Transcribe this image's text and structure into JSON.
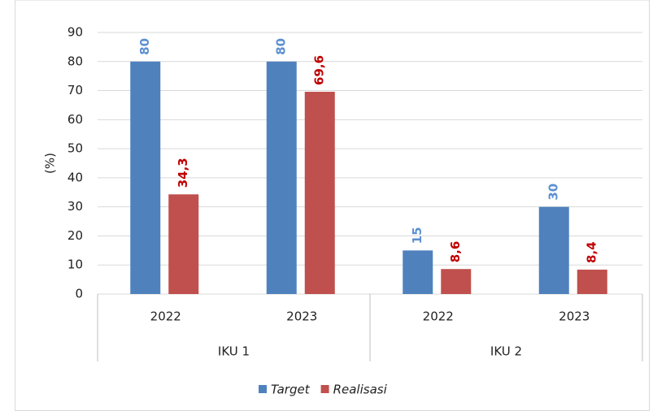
{
  "chart_data": {
    "type": "bar",
    "categories": [
      "2022",
      "2023",
      "2022",
      "2023"
    ],
    "groups": [
      "IKU 1",
      "IKU 2"
    ],
    "y_label": "(%)",
    "series": [
      {
        "name": "Target",
        "color": "#4f81bd",
        "label_color": "#5b8fd1",
        "values": [
          80,
          80,
          15,
          30
        ]
      },
      {
        "name": "Realisasi",
        "color": "#c0504d",
        "label_color": "#c00000",
        "values": [
          34.3,
          69.6,
          8.6,
          8.4
        ],
        "value_labels": [
          "34,3",
          "69,6",
          "8,6",
          "8,4"
        ]
      }
    ],
    "ylim": [
      0,
      90
    ],
    "yticks": [
      0,
      10,
      20,
      30,
      40,
      50,
      60,
      70,
      80,
      90
    ],
    "grid": true,
    "legend": "bottom"
  }
}
